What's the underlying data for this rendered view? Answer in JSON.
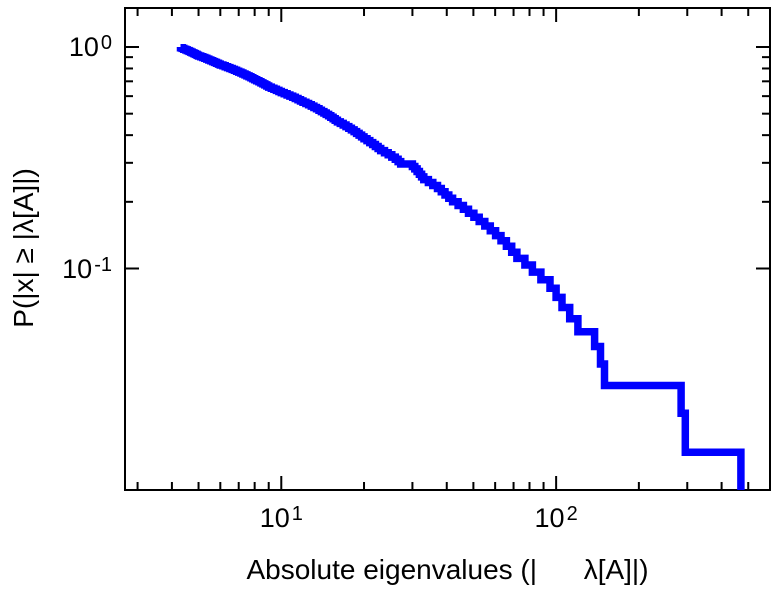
{
  "figure": {
    "background_color": "#ffffff",
    "frame_color": "#000000",
    "text_color": "#000000"
  },
  "chart_data": {
    "type": "line",
    "subtype": "empirical-ccdf-staircase",
    "title": "",
    "xlabel": "Absolute eigenvalues (|      λ[A]|)",
    "ylabel": "P(|x| ≥ |λ[A]|)",
    "xscale": "log",
    "yscale": "log",
    "xlim": [
      2.7,
      600
    ],
    "ylim": [
      0.01,
      1.5
    ],
    "grid": false,
    "legend": false,
    "x_ticks": [
      {
        "value": 10,
        "base": "10",
        "exp": "1"
      },
      {
        "value": 100,
        "base": "10",
        "exp": "2"
      }
    ],
    "y_ticks": [
      {
        "value": 1,
        "base": "10",
        "exp": "0"
      },
      {
        "value": 0.1,
        "base": "10",
        "exp": "-1"
      }
    ],
    "series": [
      {
        "name": "absolute-eigenvalue-ccdf",
        "color": "#0000ff",
        "line_width": 7.5,
        "n_values": 135,
        "eigenvalues": [
          4.3,
          4.36,
          4.42,
          4.49,
          4.55,
          4.62,
          4.68,
          4.74,
          4.81,
          4.87,
          4.94,
          5.0,
          5.09,
          5.18,
          5.27,
          5.36,
          5.45,
          5.54,
          5.63,
          5.72,
          5.81,
          5.91,
          6.0,
          6.13,
          6.25,
          6.38,
          6.5,
          6.63,
          6.75,
          6.88,
          7.0,
          7.13,
          7.25,
          7.38,
          7.5,
          7.63,
          7.75,
          7.88,
          8.0,
          8.14,
          8.29,
          8.43,
          8.57,
          8.71,
          8.86,
          9.0,
          9.2,
          9.4,
          9.6,
          9.8,
          10.0,
          10.25,
          10.5,
          10.75,
          11.0,
          11.25,
          11.5,
          11.75,
          12.0,
          12.29,
          12.57,
          12.86,
          13.14,
          13.43,
          13.71,
          14.0,
          14.29,
          14.57,
          14.86,
          15.14,
          15.43,
          15.71,
          16.0,
          16.4,
          16.8,
          17.2,
          17.6,
          18.0,
          18.4,
          18.8,
          19.2,
          19.6,
          20.0,
          20.5,
          21.0,
          21.5,
          22.0,
          22.5,
          23.0,
          23.75,
          24.5,
          25.25,
          26.0,
          26.6,
          27.2,
          30.0,
          30.6,
          31.2,
          31.8,
          32.4,
          33.0,
          34.3,
          35.6,
          37.0,
          38.2,
          39.4,
          40.7,
          42.0,
          44.0,
          46.0,
          48.0,
          50.2,
          52.5,
          55.0,
          57.6,
          60.2,
          63.0,
          65.9,
          68.9,
          72.0,
          77.0,
          82.0,
          88.0,
          95.0,
          100.0,
          105.0,
          112.0,
          120.0,
          138.0,
          145.0,
          150.0,
          285.0,
          295.0,
          470.0,
          1100.0
        ]
      }
    ]
  }
}
